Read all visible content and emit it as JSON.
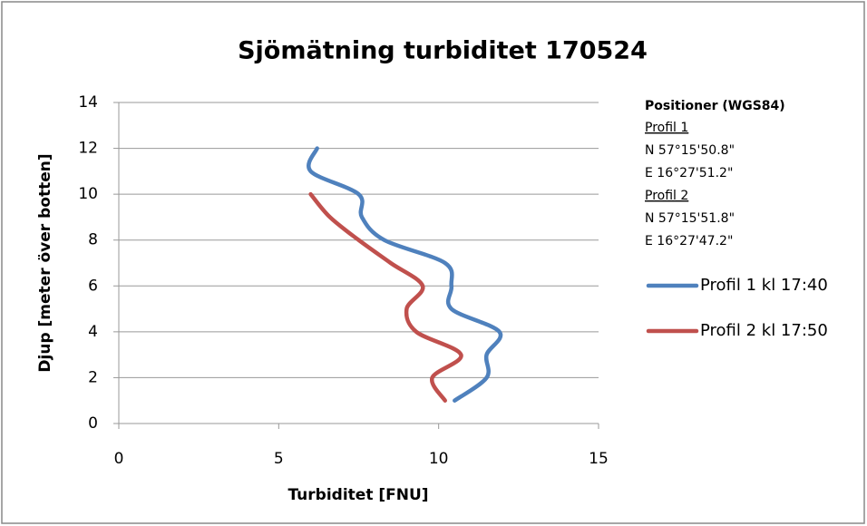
{
  "chart_data": {
    "type": "scatter-smooth",
    "title": "Sjömätning turbiditet 170524",
    "x_label": "Turbiditet [FNU]",
    "y_label": "Djup  [meter över botten]",
    "xlim": [
      0,
      15
    ],
    "xticks": [
      0,
      5,
      10,
      15
    ],
    "ylim": [
      0,
      14
    ],
    "yticks": [
      0,
      2,
      4,
      6,
      8,
      10,
      12,
      14
    ],
    "grid": true,
    "legend": "right",
    "series": [
      {
        "name": "Profil 1 kl 17:40",
        "color": "#4f81bd",
        "x": [
          10.5,
          11.5,
          11.5,
          11.9,
          10.4,
          10.4,
          10.2,
          8.3,
          7.6,
          7.5,
          6.0,
          6.2
        ],
        "values": [
          1,
          2,
          3,
          4,
          5,
          6,
          7,
          8,
          9,
          10,
          11,
          12
        ]
      },
      {
        "name": "Profil 2 kl 17:50",
        "color": "#c0504d",
        "x": [
          10.2,
          9.8,
          10.7,
          9.3,
          9.0,
          9.5,
          8.5,
          7.5,
          6.6,
          6.0
        ],
        "values": [
          1,
          2,
          3,
          4,
          5,
          6,
          7,
          8,
          9,
          10
        ]
      }
    ],
    "positions": {
      "heading": "Positioner (WGS84)",
      "profiles": [
        {
          "label": "Profil 1",
          "lat": "N 57°15'50.8\"",
          "lon": "E 16°27'51.2\""
        },
        {
          "label": "Profil 2",
          "lat": "N 57°15'51.8\"",
          "lon": "E 16°27'47.2\""
        }
      ]
    }
  }
}
